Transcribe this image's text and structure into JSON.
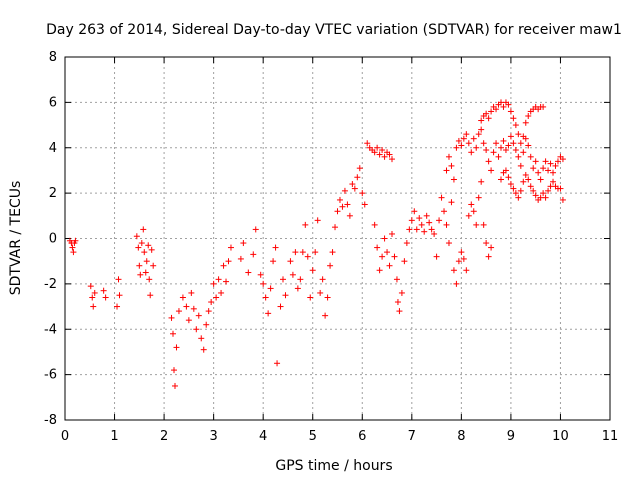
{
  "chart_data": {
    "type": "scatter",
    "title": "Day 263 of 2014, Sidereal Day-to-day VTEC variation (SDTVAR) for receiver maw1",
    "xlabel": "GPS time / hours",
    "ylabel": "SDTVAR / TECUs",
    "xlim": [
      0,
      11
    ],
    "ylim": [
      -8,
      8
    ],
    "x_ticks": [
      "0",
      "1",
      "2",
      "3",
      "4",
      "5",
      "6",
      "7",
      "8",
      "9",
      "10",
      "11"
    ],
    "y_ticks": [
      "8",
      "6",
      "4",
      "2",
      "0",
      "-2",
      "-4",
      "-6",
      "-8"
    ],
    "grid": true,
    "marker": "+",
    "color": "#ff0000",
    "series": [
      {
        "name": "SDTVAR",
        "points": [
          [
            0.1,
            -0.1
          ],
          [
            0.13,
            -0.2
          ],
          [
            0.15,
            -0.4
          ],
          [
            0.17,
            -0.6
          ],
          [
            0.19,
            -0.2
          ],
          [
            0.21,
            -0.1
          ],
          [
            0.52,
            -2.1
          ],
          [
            0.55,
            -2.6
          ],
          [
            0.57,
            -3.0
          ],
          [
            0.6,
            -2.4
          ],
          [
            0.78,
            -2.3
          ],
          [
            0.82,
            -2.6
          ],
          [
            1.05,
            -3.0
          ],
          [
            1.08,
            -1.8
          ],
          [
            1.1,
            -2.5
          ],
          [
            1.45,
            0.1
          ],
          [
            1.48,
            -0.4
          ],
          [
            1.5,
            -1.2
          ],
          [
            1.52,
            -1.6
          ],
          [
            1.55,
            -0.2
          ],
          [
            1.58,
            0.4
          ],
          [
            1.6,
            -0.6
          ],
          [
            1.63,
            -1.5
          ],
          [
            1.65,
            -1.0
          ],
          [
            1.68,
            -0.3
          ],
          [
            1.7,
            -1.8
          ],
          [
            1.72,
            -2.5
          ],
          [
            1.75,
            -0.5
          ],
          [
            1.78,
            -1.2
          ],
          [
            2.15,
            -3.5
          ],
          [
            2.18,
            -4.2
          ],
          [
            2.2,
            -5.8
          ],
          [
            2.22,
            -6.5
          ],
          [
            2.25,
            -4.8
          ],
          [
            2.3,
            -3.2
          ],
          [
            2.38,
            -2.6
          ],
          [
            2.45,
            -3.0
          ],
          [
            2.5,
            -3.6
          ],
          [
            2.55,
            -2.4
          ],
          [
            2.6,
            -3.1
          ],
          [
            2.65,
            -4.0
          ],
          [
            2.7,
            -3.4
          ],
          [
            2.75,
            -4.4
          ],
          [
            2.8,
            -4.9
          ],
          [
            2.85,
            -3.8
          ],
          [
            2.9,
            -3.2
          ],
          [
            2.95,
            -2.8
          ],
          [
            3.0,
            -2.0
          ],
          [
            3.05,
            -2.6
          ],
          [
            3.1,
            -1.8
          ],
          [
            3.15,
            -2.4
          ],
          [
            3.2,
            -1.2
          ],
          [
            3.25,
            -1.9
          ],
          [
            3.3,
            -1.0
          ],
          [
            3.35,
            -0.4
          ],
          [
            3.55,
            -0.9
          ],
          [
            3.6,
            -0.2
          ],
          [
            3.7,
            -1.5
          ],
          [
            3.8,
            -0.7
          ],
          [
            3.85,
            0.4
          ],
          [
            3.95,
            -1.6
          ],
          [
            4.0,
            -2.0
          ],
          [
            4.05,
            -2.6
          ],
          [
            4.1,
            -3.3
          ],
          [
            4.15,
            -2.2
          ],
          [
            4.2,
            -1.0
          ],
          [
            4.25,
            -0.4
          ],
          [
            4.28,
            -5.5
          ],
          [
            4.35,
            -3.0
          ],
          [
            4.4,
            -1.8
          ],
          [
            4.45,
            -2.5
          ],
          [
            4.55,
            -1.0
          ],
          [
            4.6,
            -1.6
          ],
          [
            4.65,
            -0.6
          ],
          [
            4.7,
            -2.2
          ],
          [
            4.75,
            -1.8
          ],
          [
            4.8,
            -0.6
          ],
          [
            4.85,
            0.6
          ],
          [
            4.9,
            -0.8
          ],
          [
            4.95,
            -2.6
          ],
          [
            5.0,
            -1.4
          ],
          [
            5.05,
            -0.6
          ],
          [
            5.1,
            0.8
          ],
          [
            5.15,
            -2.4
          ],
          [
            5.2,
            -1.8
          ],
          [
            5.25,
            -3.4
          ],
          [
            5.3,
            -2.6
          ],
          [
            5.35,
            -1.2
          ],
          [
            5.4,
            -0.6
          ],
          [
            5.45,
            0.5
          ],
          [
            5.5,
            1.2
          ],
          [
            5.55,
            1.7
          ],
          [
            5.6,
            1.4
          ],
          [
            5.65,
            2.1
          ],
          [
            5.7,
            1.5
          ],
          [
            5.75,
            1.0
          ],
          [
            5.8,
            2.4
          ],
          [
            5.85,
            2.2
          ],
          [
            5.9,
            2.7
          ],
          [
            5.95,
            3.1
          ],
          [
            6.0,
            2.0
          ],
          [
            6.05,
            1.5
          ],
          [
            6.1,
            4.2
          ],
          [
            6.15,
            4.0
          ],
          [
            6.2,
            3.9
          ],
          [
            6.25,
            3.8
          ],
          [
            6.3,
            4.0
          ],
          [
            6.35,
            3.7
          ],
          [
            6.4,
            3.9
          ],
          [
            6.45,
            3.6
          ],
          [
            6.5,
            3.8
          ],
          [
            6.55,
            3.7
          ],
          [
            6.6,
            3.5
          ],
          [
            6.65,
            -0.8
          ],
          [
            6.7,
            -1.8
          ],
          [
            6.72,
            -2.8
          ],
          [
            6.75,
            -3.2
          ],
          [
            6.8,
            -2.4
          ],
          [
            6.85,
            -1.0
          ],
          [
            6.9,
            -0.2
          ],
          [
            6.95,
            0.4
          ],
          [
            6.25,
            0.6
          ],
          [
            6.3,
            -0.4
          ],
          [
            6.35,
            -1.4
          ],
          [
            6.4,
            -0.8
          ],
          [
            6.45,
            0.0
          ],
          [
            6.5,
            -0.6
          ],
          [
            6.55,
            -1.2
          ],
          [
            6.6,
            0.2
          ],
          [
            7.0,
            0.8
          ],
          [
            7.05,
            1.2
          ],
          [
            7.1,
            0.4
          ],
          [
            7.15,
            0.9
          ],
          [
            7.2,
            0.6
          ],
          [
            7.25,
            0.3
          ],
          [
            7.3,
            1.0
          ],
          [
            7.35,
            0.7
          ],
          [
            7.4,
            0.4
          ],
          [
            7.45,
            0.2
          ],
          [
            7.5,
            -0.8
          ],
          [
            7.55,
            0.8
          ],
          [
            7.6,
            1.8
          ],
          [
            7.65,
            1.2
          ],
          [
            7.7,
            0.6
          ],
          [
            7.75,
            -0.2
          ],
          [
            7.8,
            1.6
          ],
          [
            7.85,
            -1.4
          ],
          [
            7.9,
            -2.0
          ],
          [
            7.95,
            -1.0
          ],
          [
            8.0,
            -0.6
          ],
          [
            8.05,
            -0.9
          ],
          [
            8.1,
            -1.4
          ],
          [
            8.15,
            1.0
          ],
          [
            8.2,
            1.5
          ],
          [
            8.25,
            1.2
          ],
          [
            8.3,
            0.6
          ],
          [
            8.35,
            1.8
          ],
          [
            8.4,
            2.5
          ],
          [
            8.45,
            0.6
          ],
          [
            8.5,
            -0.2
          ],
          [
            8.55,
            -0.8
          ],
          [
            8.6,
            -0.4
          ],
          [
            7.7,
            3.0
          ],
          [
            7.75,
            3.6
          ],
          [
            7.8,
            3.2
          ],
          [
            7.85,
            2.6
          ],
          [
            7.9,
            4.0
          ],
          [
            7.95,
            4.3
          ],
          [
            8.0,
            4.1
          ],
          [
            8.05,
            4.4
          ],
          [
            8.1,
            4.6
          ],
          [
            8.15,
            4.2
          ],
          [
            8.2,
            3.8
          ],
          [
            8.25,
            4.4
          ],
          [
            8.3,
            4.0
          ],
          [
            8.35,
            4.6
          ],
          [
            8.4,
            4.8
          ],
          [
            8.45,
            4.2
          ],
          [
            8.5,
            3.9
          ],
          [
            8.55,
            3.4
          ],
          [
            8.6,
            3.0
          ],
          [
            8.65,
            3.8
          ],
          [
            8.7,
            4.2
          ],
          [
            8.75,
            3.6
          ],
          [
            8.8,
            4.0
          ],
          [
            8.85,
            4.3
          ],
          [
            8.9,
            3.9
          ],
          [
            8.95,
            4.1
          ],
          [
            9.0,
            4.5
          ],
          [
            9.05,
            4.2
          ],
          [
            9.1,
            3.9
          ],
          [
            9.15,
            3.6
          ],
          [
            9.2,
            3.2
          ],
          [
            9.25,
            3.8
          ],
          [
            9.3,
            4.4
          ],
          [
            9.35,
            4.1
          ],
          [
            9.4,
            3.6
          ],
          [
            9.45,
            3.1
          ],
          [
            9.5,
            3.4
          ],
          [
            9.55,
            2.9
          ],
          [
            9.6,
            2.6
          ],
          [
            9.65,
            3.1
          ],
          [
            9.7,
            3.4
          ],
          [
            9.75,
            3.0
          ],
          [
            9.8,
            3.3
          ],
          [
            9.85,
            2.9
          ],
          [
            9.9,
            3.2
          ],
          [
            9.95,
            3.4
          ],
          [
            10.0,
            3.6
          ],
          [
            10.05,
            3.5
          ],
          [
            8.4,
            5.2
          ],
          [
            8.45,
            5.4
          ],
          [
            8.5,
            5.5
          ],
          [
            8.55,
            5.3
          ],
          [
            8.6,
            5.6
          ],
          [
            8.65,
            5.8
          ],
          [
            8.7,
            5.7
          ],
          [
            8.75,
            5.9
          ],
          [
            8.8,
            6.0
          ],
          [
            8.85,
            5.8
          ],
          [
            8.9,
            6.0
          ],
          [
            8.95,
            5.9
          ],
          [
            9.0,
            5.6
          ],
          [
            9.05,
            5.3
          ],
          [
            9.1,
            5.0
          ],
          [
            9.15,
            4.6
          ],
          [
            9.2,
            4.2
          ],
          [
            9.25,
            4.5
          ],
          [
            9.3,
            5.1
          ],
          [
            9.35,
            5.4
          ],
          [
            9.4,
            5.6
          ],
          [
            9.45,
            5.7
          ],
          [
            9.5,
            5.8
          ],
          [
            9.55,
            5.7
          ],
          [
            9.6,
            5.8
          ],
          [
            9.65,
            5.8
          ],
          [
            8.8,
            2.6
          ],
          [
            8.85,
            2.9
          ],
          [
            8.9,
            3.0
          ],
          [
            8.95,
            2.7
          ],
          [
            9.0,
            2.4
          ],
          [
            9.05,
            2.2
          ],
          [
            9.1,
            2.0
          ],
          [
            9.15,
            1.8
          ],
          [
            9.2,
            2.1
          ],
          [
            9.25,
            2.5
          ],
          [
            9.3,
            2.8
          ],
          [
            9.35,
            2.6
          ],
          [
            9.4,
            2.3
          ],
          [
            9.45,
            2.1
          ],
          [
            9.5,
            1.9
          ],
          [
            9.55,
            1.7
          ],
          [
            9.6,
            1.8
          ],
          [
            9.65,
            2.0
          ],
          [
            9.7,
            1.8
          ],
          [
            9.75,
            2.1
          ],
          [
            9.8,
            2.3
          ],
          [
            9.85,
            2.5
          ],
          [
            9.9,
            2.3
          ],
          [
            9.95,
            2.2
          ],
          [
            10.0,
            2.2
          ],
          [
            10.05,
            1.7
          ]
        ]
      }
    ]
  }
}
